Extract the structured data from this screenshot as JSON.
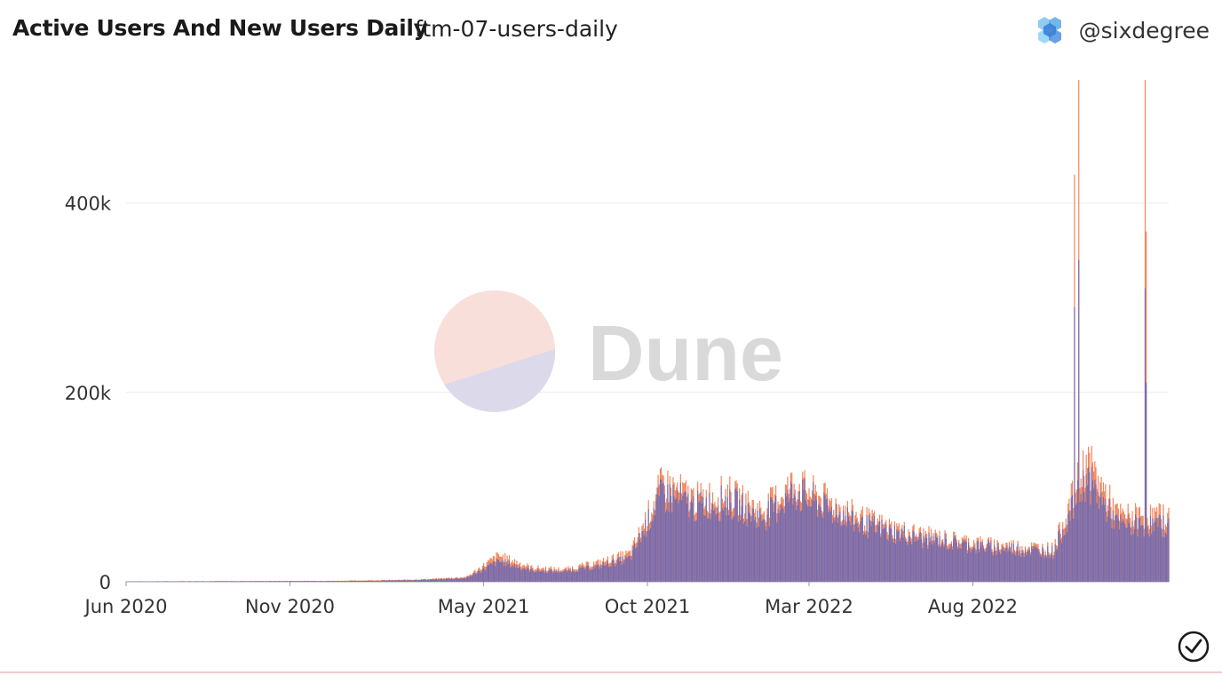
{
  "header": {
    "title": "Active Users And New Users Daily",
    "query_name": "ftm-07-users-daily",
    "author": "@sixdegree"
  },
  "watermark": {
    "text": "Dune"
  },
  "icons": {
    "avatar": "hexagon-cluster-avatar-icon",
    "status": "check-circle-icon"
  },
  "colors": {
    "active_users": "#f0865e",
    "new_users": "#6f6ab4",
    "watermark_text": "#d9d9d9"
  },
  "chart_data": {
    "type": "bar",
    "stacked": false,
    "x_axis": {
      "type": "date",
      "range": [
        "2020-06-01",
        "2023-01-31"
      ],
      "ticks": [
        "Jun 2020",
        "Nov 2020",
        "May 2021",
        "Oct 2021",
        "Mar 2022",
        "Aug 2022"
      ]
    },
    "y_axis": {
      "range": [
        0,
        530000
      ],
      "ticks": [
        0,
        200000,
        400000
      ],
      "tick_labels": [
        "0",
        "200k",
        "400k"
      ]
    },
    "grid": true,
    "legend": "none",
    "series_colors": [
      "#f0865e",
      "#6f6ab4"
    ],
    "x": [
      "2020-06",
      "2020-09",
      "2020-12",
      "2021-02",
      "2021-03",
      "2021-04",
      "2021-05",
      "2021-06",
      "2021-07",
      "2021-08",
      "2021-09",
      "2021-10",
      "2021-11",
      "2021-12",
      "2022-01",
      "2022-02",
      "2022-03",
      "2022-04",
      "2022-05",
      "2022-06",
      "2022-07",
      "2022-08",
      "2022-09",
      "2022-10",
      "2022-11",
      "2022-12",
      "2023-01"
    ],
    "series": [
      {
        "values": [
          500,
          700,
          1000,
          2000,
          3000,
          5000,
          28000,
          15000,
          13000,
          20000,
          30000,
          105000,
          88000,
          95000,
          75000,
          105000,
          88000,
          70000,
          58000,
          50000,
          45000,
          40000,
          38000,
          35000,
          130000,
          70000,
          70000
        ]
      },
      {
        "values": [
          400,
          600,
          800,
          1500,
          2500,
          4000,
          22000,
          12000,
          11000,
          16000,
          25000,
          98000,
          80000,
          88000,
          68000,
          97000,
          83000,
          65000,
          54000,
          47000,
          42000,
          37000,
          35000,
          32000,
          110000,
          60000,
          60000
        ]
      }
    ],
    "peaks": [
      {
        "x": "2022-11-08",
        "values": [
          530000,
          340000
        ]
      },
      {
        "x": "2022-11-04",
        "values": [
          430000,
          290000
        ]
      },
      {
        "x": "2023-01-09",
        "values": [
          530000,
          310000
        ]
      },
      {
        "x": "2023-01-10",
        "values": [
          370000,
          210000
        ]
      }
    ]
  }
}
